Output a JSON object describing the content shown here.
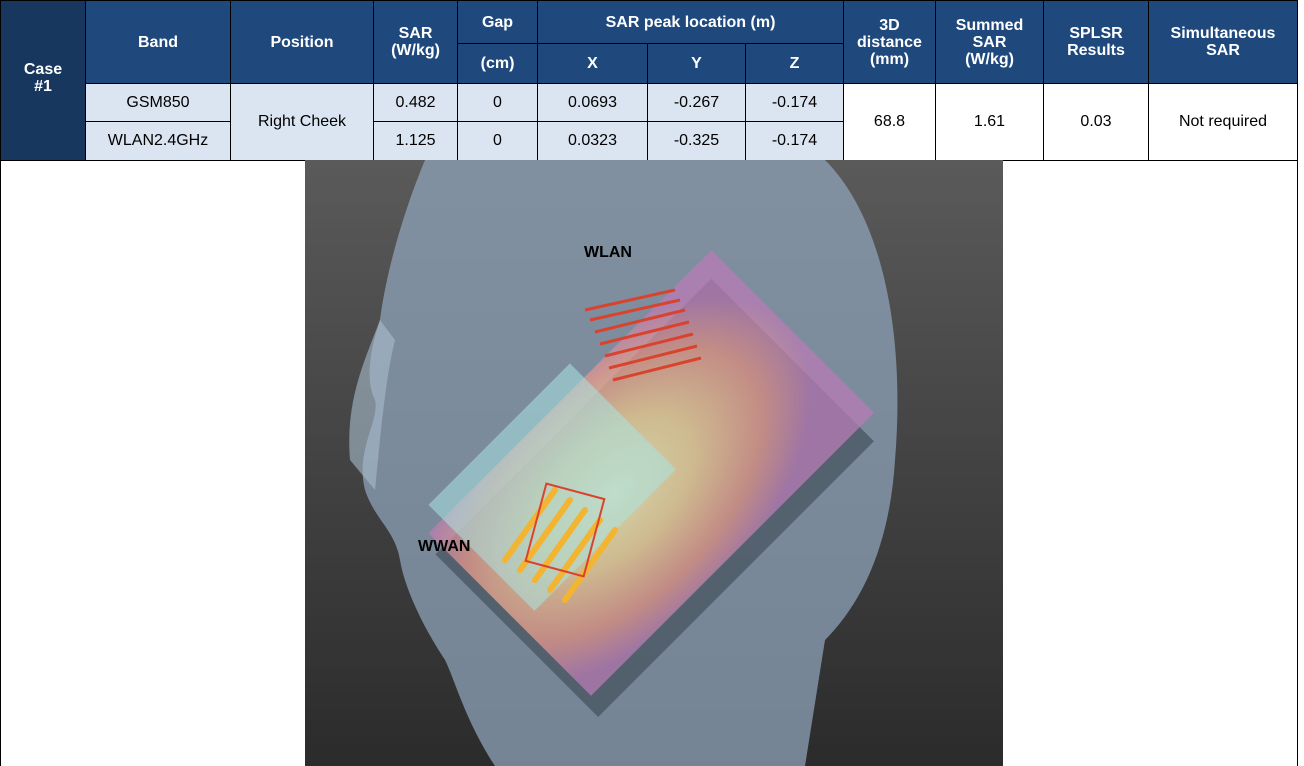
{
  "table": {
    "header": {
      "case_label": "Case",
      "case_number": "#1",
      "band": "Band",
      "position": "Position",
      "sar": "SAR (W/kg)",
      "gap": "Gap",
      "gap_unit": "(cm)",
      "peak_location": "SAR peak location (m)",
      "x": "X",
      "y": "Y",
      "z": "Z",
      "distance": "3D distance (mm)",
      "summed_sar": "Summed SAR (W/kg)",
      "splsr": "SPLSR Results",
      "simultaneous": "Simultaneous SAR"
    },
    "rows": [
      [
        "GSM850",
        "0.482",
        "0",
        "0.0693",
        "-0.267",
        "-0.174"
      ],
      [
        "WLAN2.4GHz",
        "1.125",
        "0",
        "0.0323",
        "-0.325",
        "-0.174"
      ]
    ],
    "position": "Right Cheek",
    "distance": "68.8",
    "summed_sar": "1.61",
    "splsr": "0.03",
    "simultaneous": "Not required"
  },
  "figure": {
    "wlan_label": "WLAN",
    "wwan_label": "WWAN"
  }
}
